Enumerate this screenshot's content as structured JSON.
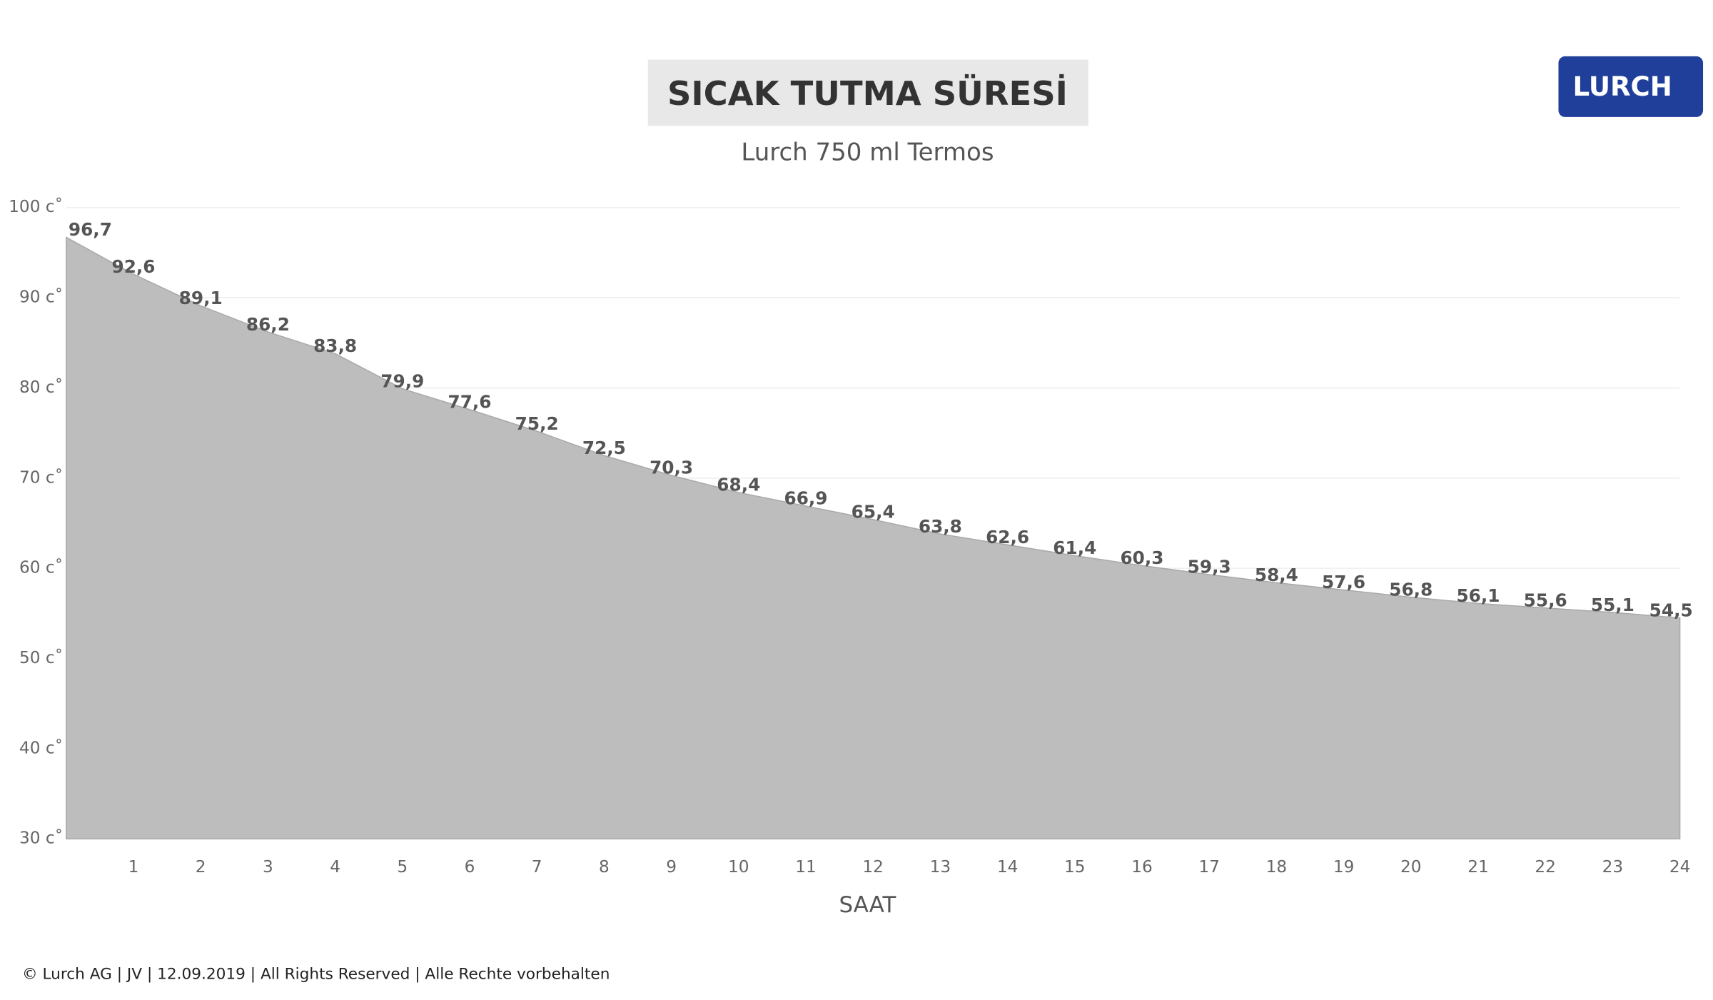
{
  "logo": "LURCH",
  "footer": "© Lurch AG | JV | 12.09.2019 | All Rights Reserved | Alle Rechte vorbehalten",
  "chart_data": {
    "type": "area",
    "title": "SICAK TUTMA SÜRESİ",
    "subtitle": "Lurch 750 ml Termos",
    "x_label": "SAAT",
    "x": [
      0,
      1,
      2,
      3,
      4,
      5,
      6,
      7,
      8,
      9,
      10,
      11,
      12,
      13,
      14,
      15,
      16,
      17,
      18,
      19,
      20,
      21,
      22,
      23,
      24
    ],
    "values": [
      96.7,
      92.6,
      89.1,
      86.2,
      83.8,
      79.9,
      77.6,
      75.2,
      72.5,
      70.3,
      68.4,
      66.9,
      65.4,
      63.8,
      62.6,
      61.4,
      60.3,
      59.3,
      58.4,
      57.6,
      56.8,
      56.1,
      55.6,
      55.1,
      54.5
    ],
    "value_labels": [
      "96,7",
      "92,6",
      "89,1",
      "86,2",
      "83,8",
      "79,9",
      "77,6",
      "75,2",
      "72,5",
      "70,3",
      "68,4",
      "66,9",
      "65,4",
      "63,8",
      "62,6",
      "61,4",
      "60,3",
      "59,3",
      "58,4",
      "57,6",
      "56,8",
      "56,1",
      "55,6",
      "55,1",
      "54,5"
    ],
    "color": "#bdbdbd",
    "xlim": [
      0,
      24
    ],
    "xticks": [
      1,
      2,
      3,
      4,
      5,
      6,
      7,
      8,
      9,
      10,
      11,
      12,
      13,
      14,
      15,
      16,
      17,
      18,
      19,
      20,
      21,
      22,
      23,
      24
    ],
    "ylim": [
      30,
      100
    ],
    "yticks": [
      {
        "value": 30,
        "label": "30 c˚"
      },
      {
        "value": 40,
        "label": "40 c˚"
      },
      {
        "value": 50,
        "label": "50 c˚"
      },
      {
        "value": 60,
        "label": "60 c˚"
      },
      {
        "value": 70,
        "label": "70 c˚"
      },
      {
        "value": 80,
        "label": "80 c˚"
      },
      {
        "value": 90,
        "label": "90 c˚"
      },
      {
        "value": 100,
        "label": "100 c˚"
      }
    ],
    "grid": true
  }
}
